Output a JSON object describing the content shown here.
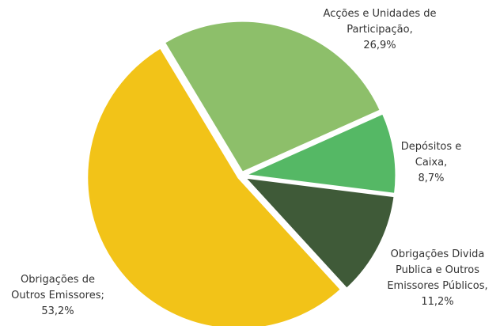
{
  "chart_data": {
    "type": "pie",
    "categories": [
      "Acções e Unidades de Participação,",
      "Depósitos e Caixa,",
      "Obrigações Divida Publica e Outros Emissores Públicos,",
      "Obrigações de Outros Emissores;"
    ],
    "values": [
      26.9,
      8.7,
      11.2,
      53.2
    ],
    "value_labels": [
      "26,9%",
      "8,7%",
      "11,2%",
      "53,2%"
    ],
    "colors": [
      "#8dbf6a",
      "#55b865",
      "#3f5a38",
      "#f2c318"
    ]
  }
}
